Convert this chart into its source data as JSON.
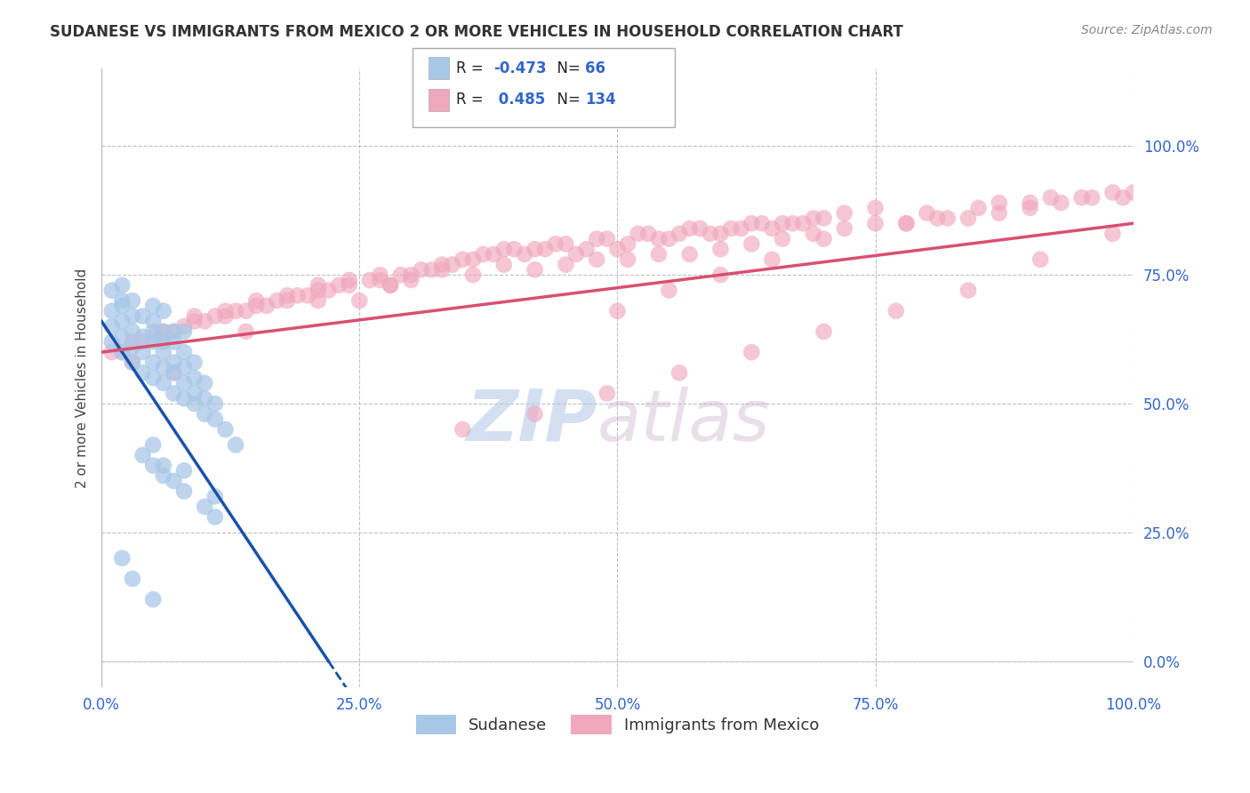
{
  "title": "SUDANESE VS IMMIGRANTS FROM MEXICO 2 OR MORE VEHICLES IN HOUSEHOLD CORRELATION CHART",
  "source": "Source: ZipAtlas.com",
  "ylabel": "2 or more Vehicles in Household",
  "xlim": [
    0.0,
    100.0
  ],
  "ylim": [
    -5.0,
    115.0
  ],
  "yticks": [
    0,
    25,
    50,
    75,
    100
  ],
  "ytick_labels": [
    "0.0%",
    "25.0%",
    "50.0%",
    "75.0%",
    "100.0%"
  ],
  "xticks": [
    0,
    25,
    50,
    75,
    100
  ],
  "xtick_labels": [
    "0.0%",
    "25.0%",
    "50.0%",
    "75.0%",
    "100.0%"
  ],
  "legend_R1": "-0.473",
  "legend_N1": "66",
  "legend_R2": "0.485",
  "legend_N2": "134",
  "color_sudanese": "#a8c8e8",
  "color_mexico": "#f0a8be",
  "color_line_sudanese": "#1a52a8",
  "color_line_mexico": "#d85070",
  "watermark_ZIP": "ZIP",
  "watermark_atlas": "atlas",
  "sudanese_x": [
    1,
    1,
    1,
    1,
    2,
    2,
    2,
    2,
    2,
    2,
    3,
    3,
    3,
    3,
    3,
    4,
    4,
    4,
    4,
    5,
    5,
    5,
    5,
    5,
    5,
    6,
    6,
    6,
    6,
    6,
    6,
    7,
    7,
    7,
    7,
    7,
    8,
    8,
    8,
    8,
    8,
    9,
    9,
    9,
    9,
    10,
    10,
    10,
    11,
    11,
    12,
    13,
    4,
    5,
    5,
    6,
    6,
    7,
    8,
    8,
    10,
    11,
    11,
    2,
    3,
    5
  ],
  "sudanese_y": [
    62,
    65,
    68,
    72,
    60,
    63,
    66,
    69,
    70,
    73,
    58,
    61,
    64,
    67,
    70,
    56,
    60,
    63,
    67,
    55,
    58,
    62,
    64,
    66,
    69,
    54,
    57,
    60,
    62,
    64,
    68,
    52,
    56,
    58,
    62,
    64,
    51,
    54,
    57,
    60,
    64,
    50,
    52,
    55,
    58,
    48,
    51,
    54,
    47,
    50,
    45,
    42,
    40,
    38,
    42,
    36,
    38,
    35,
    33,
    37,
    30,
    28,
    32,
    20,
    16,
    12
  ],
  "mexico_x": [
    1,
    2,
    3,
    4,
    5,
    6,
    7,
    8,
    9,
    10,
    11,
    12,
    13,
    14,
    15,
    16,
    17,
    18,
    19,
    20,
    21,
    22,
    23,
    24,
    25,
    26,
    27,
    28,
    29,
    30,
    31,
    32,
    33,
    34,
    35,
    36,
    37,
    38,
    39,
    40,
    41,
    42,
    43,
    44,
    45,
    46,
    47,
    48,
    49,
    50,
    51,
    52,
    53,
    54,
    55,
    56,
    57,
    58,
    59,
    60,
    61,
    62,
    63,
    64,
    65,
    66,
    67,
    68,
    69,
    70,
    72,
    75,
    78,
    80,
    82,
    85,
    87,
    90,
    92,
    95,
    98,
    100,
    3,
    6,
    9,
    12,
    15,
    18,
    21,
    24,
    27,
    30,
    33,
    36,
    39,
    42,
    45,
    48,
    51,
    54,
    57,
    60,
    63,
    66,
    69,
    72,
    75,
    78,
    81,
    84,
    87,
    90,
    93,
    96,
    99,
    7,
    14,
    21,
    28,
    35,
    42,
    49,
    56,
    63,
    70,
    77,
    84,
    91,
    98,
    50,
    55,
    60,
    65,
    70
  ],
  "mexico_y": [
    60,
    60,
    62,
    62,
    63,
    64,
    64,
    65,
    66,
    66,
    67,
    67,
    68,
    68,
    69,
    69,
    70,
    70,
    71,
    71,
    72,
    72,
    73,
    73,
    70,
    74,
    74,
    73,
    75,
    75,
    76,
    76,
    77,
    77,
    78,
    78,
    79,
    79,
    80,
    80,
    79,
    80,
    80,
    81,
    81,
    79,
    80,
    82,
    82,
    80,
    81,
    83,
    83,
    82,
    82,
    83,
    84,
    84,
    83,
    83,
    84,
    84,
    85,
    85,
    84,
    85,
    85,
    85,
    86,
    86,
    87,
    88,
    85,
    87,
    86,
    88,
    89,
    89,
    90,
    90,
    91,
    91,
    58,
    63,
    67,
    68,
    70,
    71,
    73,
    74,
    75,
    74,
    76,
    75,
    77,
    76,
    77,
    78,
    78,
    79,
    79,
    80,
    81,
    82,
    83,
    84,
    85,
    85,
    86,
    86,
    87,
    88,
    89,
    90,
    90,
    56,
    64,
    70,
    73,
    45,
    48,
    52,
    56,
    60,
    64,
    68,
    72,
    78,
    83,
    68,
    72,
    75,
    78,
    82
  ],
  "line_sudanese_x0": 0,
  "line_sudanese_y0": 66,
  "line_sudanese_x1": 22,
  "line_sudanese_y1": 0,
  "line_sudanese_xdash0": 22,
  "line_sudanese_ydash0": 0,
  "line_sudanese_xdash1": 32,
  "line_sudanese_ydash1": -30,
  "line_mexico_x0": 0,
  "line_mexico_y0": 60,
  "line_mexico_x1": 100,
  "line_mexico_y1": 85
}
